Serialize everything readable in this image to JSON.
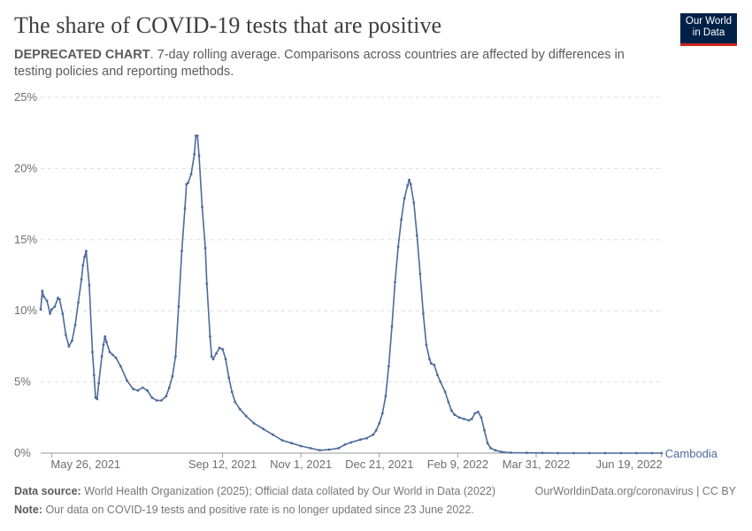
{
  "header": {
    "title": "The share of COVID-19 tests that are positive",
    "subtitle_bold": "DEPRECATED CHART",
    "subtitle_rest": ". 7-day rolling average. Comparisons across countries are affected by differences in testing policies and reporting methods."
  },
  "logo": {
    "line1": "Our World",
    "line2": "in Data",
    "bg": "#002147",
    "accent": "#ce261e"
  },
  "footer": {
    "source_label": "Data source:",
    "source_text": "World Health Organization (2025); Official data collated by Our World in Data (2022)",
    "url_text": "OurWorldinData.org/coronavirus | CC BY",
    "note_label": "Note:",
    "note_text": "Our data on COVID-19 tests and positive rate is no longer updated since 23 June 2022."
  },
  "chart_data": {
    "type": "line",
    "title": "The share of COVID-19 tests that are positive",
    "xlabel": "",
    "ylabel": "",
    "ylim": [
      0,
      25
    ],
    "xlim": [
      0,
      395
    ],
    "x_unit": "days since 2021-05-19",
    "y_ticks": [
      {
        "value": 0,
        "label": "0%"
      },
      {
        "value": 5,
        "label": "5%"
      },
      {
        "value": 10,
        "label": "10%"
      },
      {
        "value": 15,
        "label": "15%"
      },
      {
        "value": 20,
        "label": "20%"
      },
      {
        "value": 25,
        "label": "25%"
      }
    ],
    "x_ticks": [
      {
        "value": 7,
        "label": "May 26, 2021"
      },
      {
        "value": 116,
        "label": "Sep 12, 2021"
      },
      {
        "value": 166,
        "label": "Nov 1, 2021"
      },
      {
        "value": 216,
        "label": "Dec 21, 2021"
      },
      {
        "value": 266,
        "label": "Feb 9, 2022"
      },
      {
        "value": 316,
        "label": "Mar 31, 2022"
      },
      {
        "value": 396,
        "label": "Jun 19, 2022"
      }
    ],
    "grid": true,
    "legend": "end-of-line label",
    "series": [
      {
        "name": "Cambodia",
        "color": "#4c6a9c",
        "points": [
          [
            0,
            10.1
          ],
          [
            1,
            11.4
          ],
          [
            2,
            11.0
          ],
          [
            4,
            10.7
          ],
          [
            6,
            9.8
          ],
          [
            7,
            10.1
          ],
          [
            9,
            10.3
          ],
          [
            11,
            10.9
          ],
          [
            12,
            10.8
          ],
          [
            14,
            9.8
          ],
          [
            16,
            8.3
          ],
          [
            18,
            7.5
          ],
          [
            20,
            7.9
          ],
          [
            22,
            9.0
          ],
          [
            24,
            10.6
          ],
          [
            26,
            12.2
          ],
          [
            27,
            13.2
          ],
          [
            28,
            13.8
          ],
          [
            29,
            14.2
          ],
          [
            31,
            11.8
          ],
          [
            33,
            7.1
          ],
          [
            34,
            5.5
          ],
          [
            35,
            3.9
          ],
          [
            36,
            3.8
          ],
          [
            37,
            4.9
          ],
          [
            39,
            6.8
          ],
          [
            40,
            7.6
          ],
          [
            41,
            8.2
          ],
          [
            42,
            7.8
          ],
          [
            44,
            7.1
          ],
          [
            46,
            6.9
          ],
          [
            48,
            6.7
          ],
          [
            51,
            6.1
          ],
          [
            55,
            5.1
          ],
          [
            59,
            4.5
          ],
          [
            62,
            4.4
          ],
          [
            65,
            4.6
          ],
          [
            68,
            4.4
          ],
          [
            71,
            3.9
          ],
          [
            74,
            3.7
          ],
          [
            77,
            3.7
          ],
          [
            80,
            4.0
          ],
          [
            82,
            4.6
          ],
          [
            84,
            5.4
          ],
          [
            86,
            6.8
          ],
          [
            88,
            10.3
          ],
          [
            90,
            14.2
          ],
          [
            92,
            17.2
          ],
          [
            93,
            18.9
          ],
          [
            94,
            19.0
          ],
          [
            96,
            19.6
          ],
          [
            98,
            21.0
          ],
          [
            99,
            22.3
          ],
          [
            100,
            22.3
          ],
          [
            101,
            20.9
          ],
          [
            103,
            17.3
          ],
          [
            105,
            14.4
          ],
          [
            106,
            11.9
          ],
          [
            108,
            8.2
          ],
          [
            109,
            6.8
          ],
          [
            110,
            6.6
          ],
          [
            112,
            7.0
          ],
          [
            114,
            7.4
          ],
          [
            116,
            7.3
          ],
          [
            118,
            6.6
          ],
          [
            120,
            5.3
          ],
          [
            122,
            4.3
          ],
          [
            124,
            3.6
          ],
          [
            127,
            3.1
          ],
          [
            131,
            2.6
          ],
          [
            136,
            2.1
          ],
          [
            142,
            1.7
          ],
          [
            148,
            1.3
          ],
          [
            154,
            0.9
          ],
          [
            160,
            0.7
          ],
          [
            166,
            0.5
          ],
          [
            172,
            0.35
          ],
          [
            178,
            0.2
          ],
          [
            184,
            0.25
          ],
          [
            190,
            0.35
          ],
          [
            194,
            0.6
          ],
          [
            198,
            0.75
          ],
          [
            204,
            0.95
          ],
          [
            208,
            1.05
          ],
          [
            212,
            1.3
          ],
          [
            214,
            1.6
          ],
          [
            216,
            2.1
          ],
          [
            218,
            2.8
          ],
          [
            220,
            4.0
          ],
          [
            222,
            6.1
          ],
          [
            224,
            8.9
          ],
          [
            226,
            12.0
          ],
          [
            228,
            14.5
          ],
          [
            230,
            16.4
          ],
          [
            232,
            17.9
          ],
          [
            234,
            18.8
          ],
          [
            235,
            19.2
          ],
          [
            236,
            18.9
          ],
          [
            238,
            17.6
          ],
          [
            240,
            15.3
          ],
          [
            242,
            12.6
          ],
          [
            244,
            9.8
          ],
          [
            246,
            7.6
          ],
          [
            248,
            6.6
          ],
          [
            249,
            6.3
          ],
          [
            251,
            6.2
          ],
          [
            253,
            5.5
          ],
          [
            255,
            5.0
          ],
          [
            258,
            4.3
          ],
          [
            260,
            3.6
          ],
          [
            262,
            3.0
          ],
          [
            264,
            2.7
          ],
          [
            267,
            2.5
          ],
          [
            270,
            2.4
          ],
          [
            273,
            2.3
          ],
          [
            275,
            2.4
          ],
          [
            277,
            2.8
          ],
          [
            279,
            2.9
          ],
          [
            281,
            2.5
          ],
          [
            283,
            1.6
          ],
          [
            285,
            0.7
          ],
          [
            287,
            0.35
          ],
          [
            290,
            0.2
          ],
          [
            294,
            0.08
          ],
          [
            300,
            0.03
          ],
          [
            310,
            0.02
          ],
          [
            320,
            0.01
          ],
          [
            330,
            0.0
          ],
          [
            340,
            0.0
          ],
          [
            350,
            0.0
          ],
          [
            360,
            0.0
          ],
          [
            370,
            0.0
          ],
          [
            380,
            0.0
          ],
          [
            390,
            0.0
          ],
          [
            396,
            0.0
          ]
        ]
      }
    ]
  }
}
